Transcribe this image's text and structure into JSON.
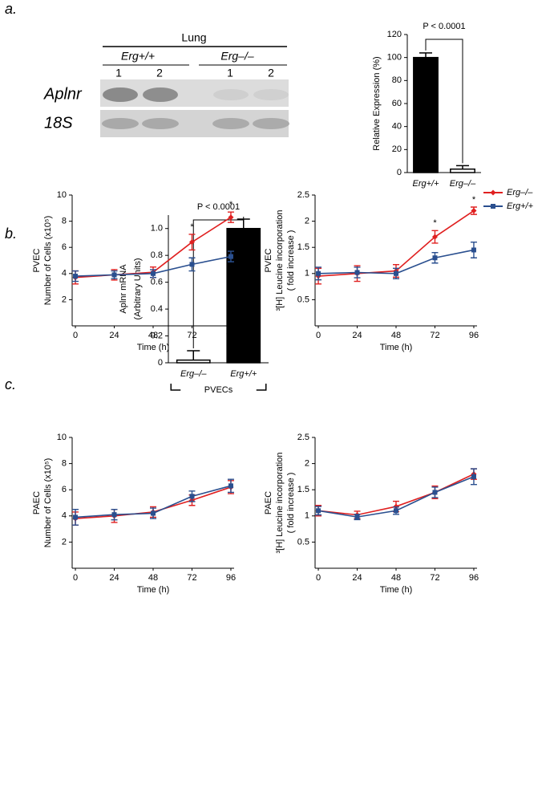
{
  "panel_labels": [
    "a.",
    "b.",
    "c."
  ],
  "blot": {
    "tissue": "Lung",
    "groups": [
      "Erg+/+",
      "Erg–/–"
    ],
    "lanes": [
      "1",
      "2",
      "1",
      "2"
    ],
    "rows": [
      "Aplnr",
      "18S"
    ]
  },
  "chart_data": [
    {
      "type": "bar",
      "ylabel": [
        "Relative Expression (%)"
      ],
      "categories": [
        "Erg+/+",
        "Erg–/–"
      ],
      "values": [
        100,
        3
      ],
      "errors": [
        4,
        3
      ],
      "colors": [
        "#000000",
        "#ffffff"
      ],
      "ylim": [
        0,
        120
      ],
      "yticks": [
        0,
        20,
        40,
        60,
        80,
        100,
        120
      ],
      "annotation": "P < 0.0001"
    },
    {
      "type": "bar",
      "ylabel": [
        "Aplnr mRNA",
        "(Arbitrary Units)"
      ],
      "categories": [
        "Erg–/–",
        "Erg+/+"
      ],
      "values": [
        0.02,
        1.0
      ],
      "errors": [
        0.07,
        0.07
      ],
      "colors": [
        "#ffffff",
        "#000000"
      ],
      "ylim": [
        0,
        1.1
      ],
      "yticks": [
        0,
        0.2,
        0.4,
        0.6,
        0.8,
        {
          "value": 1.0,
          "label": "1.0"
        }
      ],
      "annotation": "P < 0.0001",
      "group_label": "PVECs"
    },
    {
      "type": "line",
      "ylabel": [
        "PVEC",
        "Number of Cells (x10⁵)"
      ],
      "xlabel": "Time (h)",
      "x": [
        0,
        24,
        48,
        72,
        96
      ],
      "xlim": [
        -2,
        98
      ],
      "xticks": [
        0,
        24,
        48,
        72,
        96
      ],
      "ylim": [
        0,
        10
      ],
      "yticks": [
        2,
        4,
        6,
        8,
        10
      ],
      "series": [
        {
          "color": "#e02020",
          "values": [
            3.7,
            3.9,
            4.1,
            6.4,
            8.3
          ],
          "errors": [
            0.5,
            0.4,
            0.4,
            0.6,
            0.4
          ]
        },
        {
          "color": "#2a4f8f",
          "values": [
            3.8,
            3.9,
            4.0,
            4.7,
            5.3
          ],
          "errors": [
            0.4,
            0.3,
            0.3,
            0.5,
            0.4
          ]
        }
      ],
      "annotations": [
        {
          "text": "*",
          "x": 72
        },
        {
          "text": "*",
          "x": 96
        }
      ]
    },
    {
      "type": "line",
      "ylabel": [
        "PVEC",
        "³[H] Leucine incorporation",
        "( fold increase )"
      ],
      "xlabel": "Time (h)",
      "x": [
        0,
        24,
        48,
        72,
        96
      ],
      "xlim": [
        -2,
        98
      ],
      "xticks": [
        0,
        24,
        48,
        72,
        96
      ],
      "ylim": [
        0,
        2.5
      ],
      "yticks": [
        0.5,
        1,
        1.5,
        2,
        2.5
      ],
      "legend": "right",
      "series": [
        {
          "name": "Erg–/–",
          "color": "#e02020",
          "values": [
            0.95,
            1.0,
            1.05,
            1.7,
            2.2
          ],
          "errors": [
            0.15,
            0.15,
            0.12,
            0.12,
            0.07
          ]
        },
        {
          "name": "Erg+/+",
          "color": "#2a4f8f",
          "values": [
            1.0,
            1.02,
            1.0,
            1.3,
            1.45
          ],
          "errors": [
            0.12,
            0.1,
            0.1,
            0.1,
            0.15
          ]
        }
      ],
      "annotations": [
        {
          "text": "*",
          "x": 72
        },
        {
          "text": "*",
          "x": 96
        }
      ]
    },
    {
      "type": "line",
      "ylabel": [
        "PAEC",
        "Number of Cells (x10⁵)"
      ],
      "xlabel": "Time (h)",
      "x": [
        0,
        24,
        48,
        72,
        96
      ],
      "xlim": [
        -2,
        98
      ],
      "xticks": [
        0,
        24,
        48,
        72,
        96
      ],
      "ylim": [
        0,
        10
      ],
      "yticks": [
        2,
        4,
        6,
        8,
        10
      ],
      "series": [
        {
          "color": "#e02020",
          "values": [
            3.8,
            4.0,
            4.3,
            5.2,
            6.2
          ],
          "errors": [
            0.5,
            0.5,
            0.4,
            0.4,
            0.5
          ]
        },
        {
          "color": "#2a4f8f",
          "values": [
            3.9,
            4.1,
            4.2,
            5.5,
            6.3
          ],
          "errors": [
            0.6,
            0.4,
            0.4,
            0.4,
            0.5
          ]
        }
      ]
    },
    {
      "type": "line",
      "ylabel": [
        "PAEC",
        "³[H] Leucine incorporation",
        "( fold increase )"
      ],
      "xlabel": "Time (h)",
      "x": [
        0,
        24,
        48,
        72,
        96
      ],
      "xlim": [
        -2,
        98
      ],
      "xticks": [
        0,
        24,
        48,
        72,
        96
      ],
      "ylim": [
        0,
        2.5
      ],
      "yticks": [
        0.5,
        1,
        1.5,
        2,
        2.5
      ],
      "series": [
        {
          "color": "#e02020",
          "values": [
            1.1,
            1.02,
            1.18,
            1.45,
            1.8
          ],
          "errors": [
            0.1,
            0.07,
            0.1,
            0.12,
            0.1
          ]
        },
        {
          "color": "#2a4f8f",
          "values": [
            1.1,
            0.98,
            1.1,
            1.45,
            1.75
          ],
          "errors": [
            0.08,
            0.05,
            0.07,
            0.1,
            0.15
          ]
        }
      ]
    }
  ]
}
